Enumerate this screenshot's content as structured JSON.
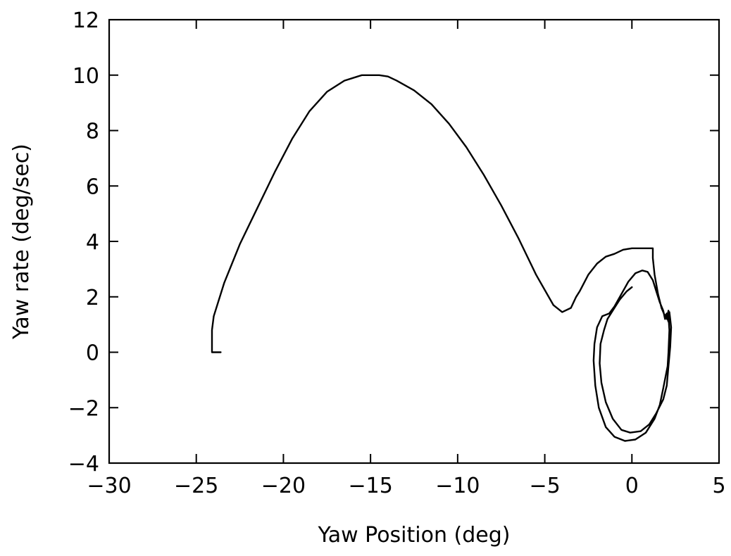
{
  "chart_data": {
    "type": "line",
    "title": "",
    "xlabel": "Yaw Position (deg)",
    "ylabel": "Yaw rate (deg/sec)",
    "xlim": [
      -30,
      5
    ],
    "ylim": [
      -4,
      12
    ],
    "xticks": [
      -30,
      -25,
      -20,
      -15,
      -10,
      -5,
      0,
      5
    ],
    "yticks": [
      -4,
      -2,
      0,
      2,
      4,
      6,
      8,
      10,
      12
    ],
    "xtick_labels": [
      "−30",
      "−25",
      "−20",
      "−15",
      "−10",
      "−5",
      "0",
      "5"
    ],
    "ytick_labels": [
      "−4",
      "−2",
      "0",
      "2",
      "4",
      "6",
      "8",
      "10",
      "12"
    ],
    "grid": false,
    "legend": "none",
    "line_color": "#000000",
    "series": [
      {
        "x": [
          -23.6,
          -24.1,
          -24.1,
          -24.0,
          -23.4,
          -22.5,
          -21.5,
          -20.5,
          -19.5,
          -18.5,
          -17.5,
          -16.5,
          -15.5,
          -14.5,
          -14.0,
          -13.5,
          -12.5,
          -11.5,
          -10.5,
          -9.5,
          -8.5,
          -7.5,
          -6.5,
          -5.5,
          -4.5,
          -4.0,
          -3.5,
          -3.2,
          -3.0,
          -2.5,
          -2.0,
          -1.5,
          -1.0,
          -0.5,
          0.0,
          0.5,
          1.2,
          1.2,
          1.3,
          1.5,
          1.7,
          1.9,
          2.0,
          2.0,
          2.1,
          2.1,
          2.15,
          2.1,
          2.05,
          1.8,
          1.6,
          1.3,
          0.8,
          0.2,
          -0.4,
          -1.0,
          -1.5,
          -1.9,
          -2.1,
          -2.2,
          -2.15,
          -2.0,
          -1.7,
          -1.3,
          -1.0,
          -0.6,
          -0.2,
          0.2,
          0.6,
          0.9,
          1.2,
          1.4,
          1.6,
          1.8,
          1.9,
          2.0,
          2.1,
          2.15,
          2.2,
          2.25,
          2.2,
          2.1,
          2.0,
          1.8,
          1.4,
          1.0,
          0.5,
          -0.1,
          -0.6,
          -1.1,
          -1.5,
          -1.75,
          -1.85,
          -1.8,
          -1.6,
          -1.4,
          -1.0,
          -0.7,
          -0.3,
          0.0
        ],
        "y": [
          0.0,
          0.0,
          0.8,
          1.3,
          2.5,
          3.9,
          5.2,
          6.5,
          7.7,
          8.7,
          9.4,
          9.8,
          10.0,
          10.0,
          9.95,
          9.8,
          9.45,
          8.95,
          8.25,
          7.4,
          6.4,
          5.3,
          4.1,
          2.8,
          1.7,
          1.45,
          1.6,
          2.0,
          2.2,
          2.8,
          3.2,
          3.45,
          3.55,
          3.7,
          3.75,
          3.75,
          3.75,
          3.4,
          2.8,
          2.1,
          1.6,
          1.3,
          1.4,
          1.2,
          1.5,
          1.3,
          0.8,
          0.0,
          -0.5,
          -1.3,
          -1.9,
          -2.4,
          -2.9,
          -3.15,
          -3.2,
          -3.05,
          -2.7,
          -2.0,
          -1.2,
          -0.3,
          0.3,
          0.9,
          1.3,
          1.4,
          1.65,
          2.1,
          2.55,
          2.85,
          2.95,
          2.9,
          2.6,
          2.2,
          1.8,
          1.5,
          1.2,
          1.3,
          1.1,
          1.45,
          1.2,
          0.9,
          0.2,
          -0.5,
          -1.2,
          -1.7,
          -2.2,
          -2.6,
          -2.85,
          -2.9,
          -2.8,
          -2.4,
          -1.8,
          -1.1,
          -0.4,
          0.3,
          0.8,
          1.2,
          1.6,
          1.9,
          2.2,
          2.35
        ]
      }
    ]
  }
}
